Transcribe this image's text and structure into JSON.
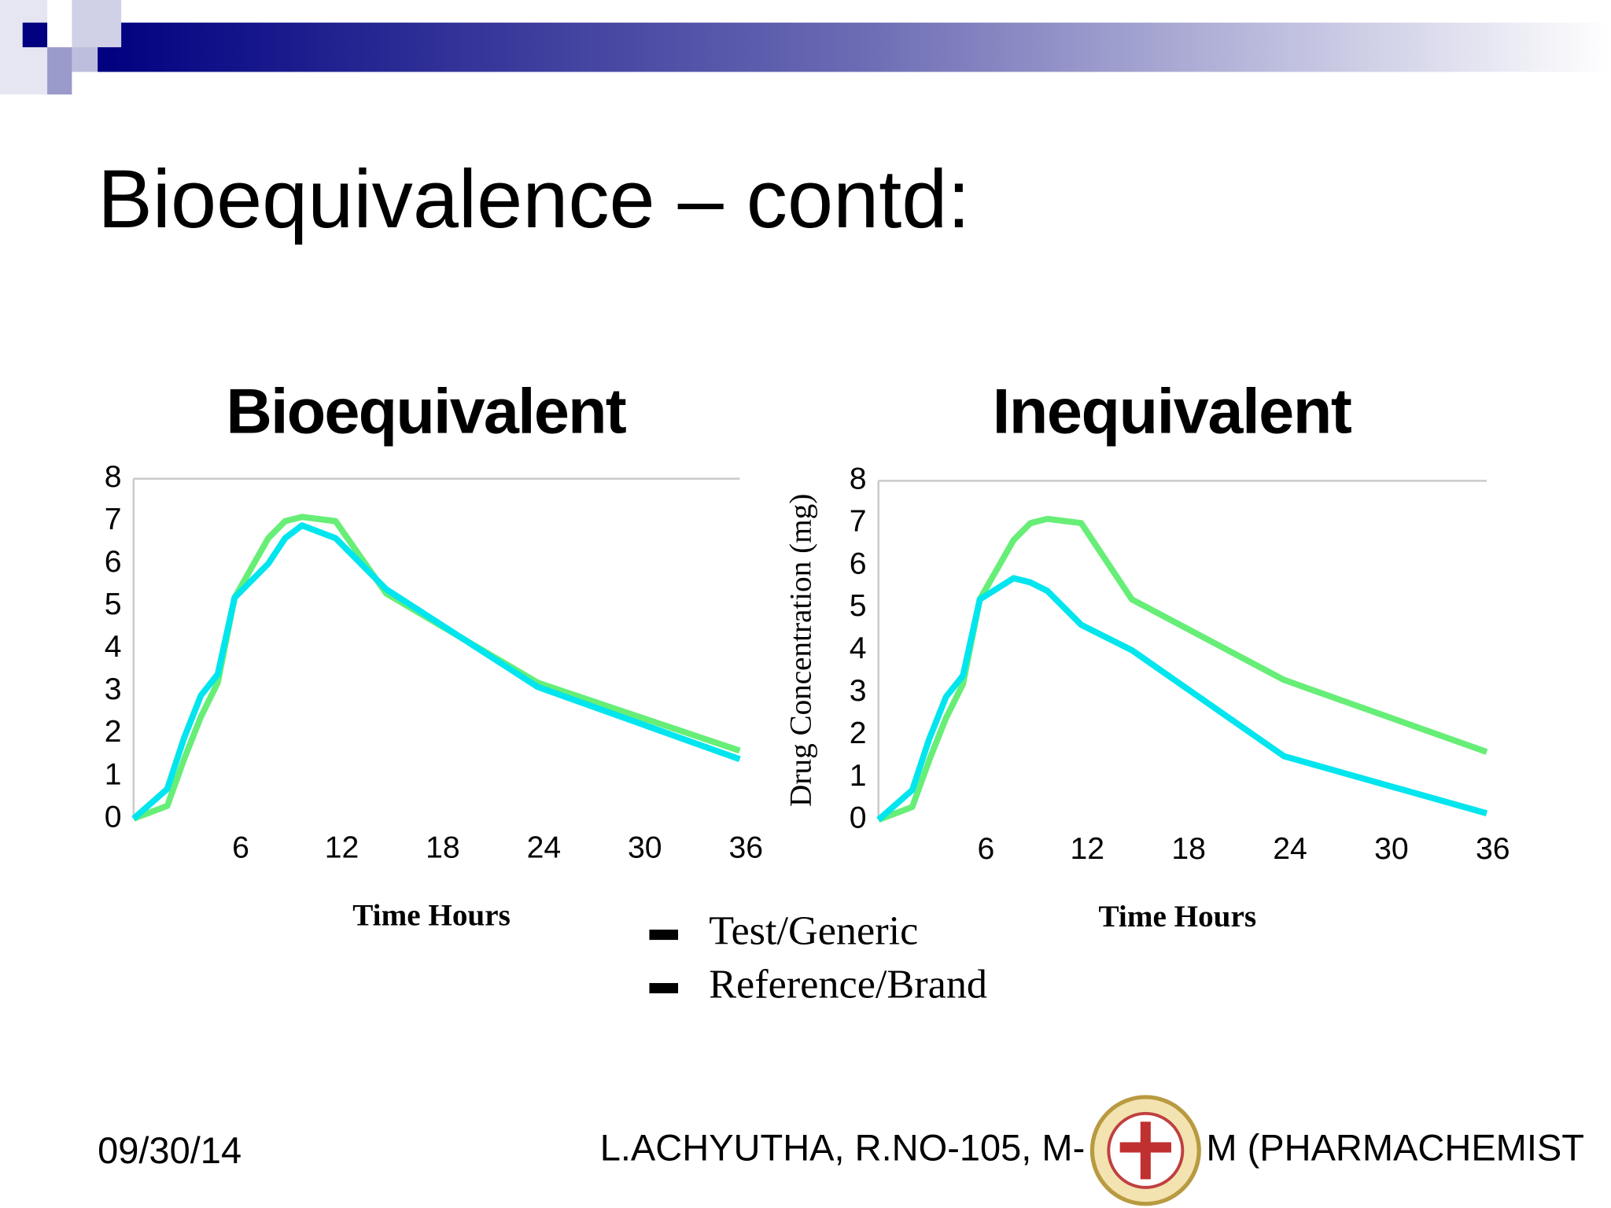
{
  "header": {
    "title": "Bioequivalence – contd:"
  },
  "chart_data": [
    {
      "type": "line",
      "title": "Bioequivalent",
      "x_label": "Time Hours",
      "x": [
        0,
        2,
        3,
        4,
        5,
        6,
        8,
        9,
        10,
        12,
        15,
        24,
        36
      ],
      "series": [
        {
          "name": "Test/Generic",
          "color": "#66ee77",
          "values": [
            0,
            0.3,
            1.4,
            2.4,
            3.2,
            5.2,
            6.6,
            7.0,
            7.1,
            7.0,
            5.3,
            3.2,
            1.6
          ]
        },
        {
          "name": "Reference/Brand",
          "color": "#00e5ee",
          "values": [
            0,
            0.7,
            1.9,
            2.9,
            3.4,
            5.2,
            6.0,
            6.6,
            6.9,
            6.6,
            5.4,
            3.1,
            1.4
          ]
        }
      ],
      "xlim": [
        0,
        36
      ],
      "xticks": [
        6,
        12,
        18,
        24,
        30,
        36
      ],
      "ylim": [
        0,
        8
      ],
      "yticks": [
        0,
        1,
        2,
        3,
        4,
        5,
        6,
        7,
        8
      ]
    },
    {
      "type": "line",
      "title": "Inequivalent",
      "x_label": "Time Hours",
      "y_label": "Drug Concentration (mg)",
      "x": [
        0,
        2,
        3,
        4,
        5,
        6,
        8,
        9,
        10,
        12,
        15,
        24,
        36
      ],
      "series": [
        {
          "color": "#66ee77",
          "values": [
            0,
            0.3,
            1.4,
            2.4,
            3.2,
            5.2,
            6.6,
            7.0,
            7.1,
            7.0,
            5.2,
            3.3,
            1.6
          ]
        },
        {
          "color": "#00e5ee",
          "values": [
            0,
            0.7,
            1.9,
            2.9,
            3.4,
            5.2,
            5.7,
            5.6,
            5.4,
            4.6,
            4.0,
            1.5,
            0.15
          ]
        }
      ],
      "xlim": [
        0,
        36
      ],
      "xticks": [
        6,
        12,
        18,
        24,
        30,
        36
      ],
      "ylim": [
        0,
        8
      ],
      "yticks": [
        0,
        1,
        2,
        3,
        4,
        5,
        6,
        7,
        8
      ]
    }
  ],
  "footer": {
    "date": "09/30/14",
    "author_left": "L.ACHYUTHA, R.NO-105, M-",
    "author_right": "M (PHARMACHEMIST"
  }
}
